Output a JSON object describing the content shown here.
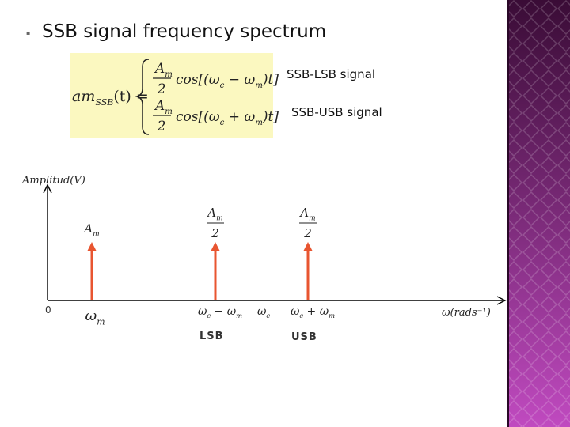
{
  "title": "SSB signal frequency spectrum",
  "formula": {
    "name": "am",
    "name_sub": "SSB",
    "arg": "(t) =",
    "cases": [
      {
        "num": [
          "A",
          "m"
        ],
        "den": "2",
        "parts": [
          "cos[(ω",
          "c",
          " − ω",
          "m",
          ")t]"
        ]
      },
      {
        "num": [
          "A",
          "m"
        ],
        "den": "2",
        "parts": [
          "cos[(ω",
          "c",
          " + ω",
          "m",
          ")t]"
        ]
      }
    ]
  },
  "case_labels": [
    "SSB-LSB signal",
    "SSB-USB signal"
  ],
  "spectrum": {
    "y_label": "Amplitud(V)",
    "x_label": "ω(rads⁻¹)",
    "origin": "0",
    "lines": [
      {
        "amplitude": {
          "num": [
            "A",
            "m"
          ]
        },
        "frequency": [
          "ω",
          "m"
        ]
      },
      {
        "amplitude": {
          "num": [
            "A",
            "m"
          ],
          "den": "2"
        },
        "frequency": [
          "ω",
          "c",
          " − ω",
          "m"
        ]
      },
      {
        "amplitude": {
          "num": [
            "A",
            "m"
          ],
          "den": "2"
        },
        "frequency": [
          "ω",
          "c",
          " + ω",
          "m"
        ]
      }
    ],
    "carrier": [
      "ω",
      "c"
    ],
    "band_labels": [
      "LSB",
      "USB"
    ]
  }
}
